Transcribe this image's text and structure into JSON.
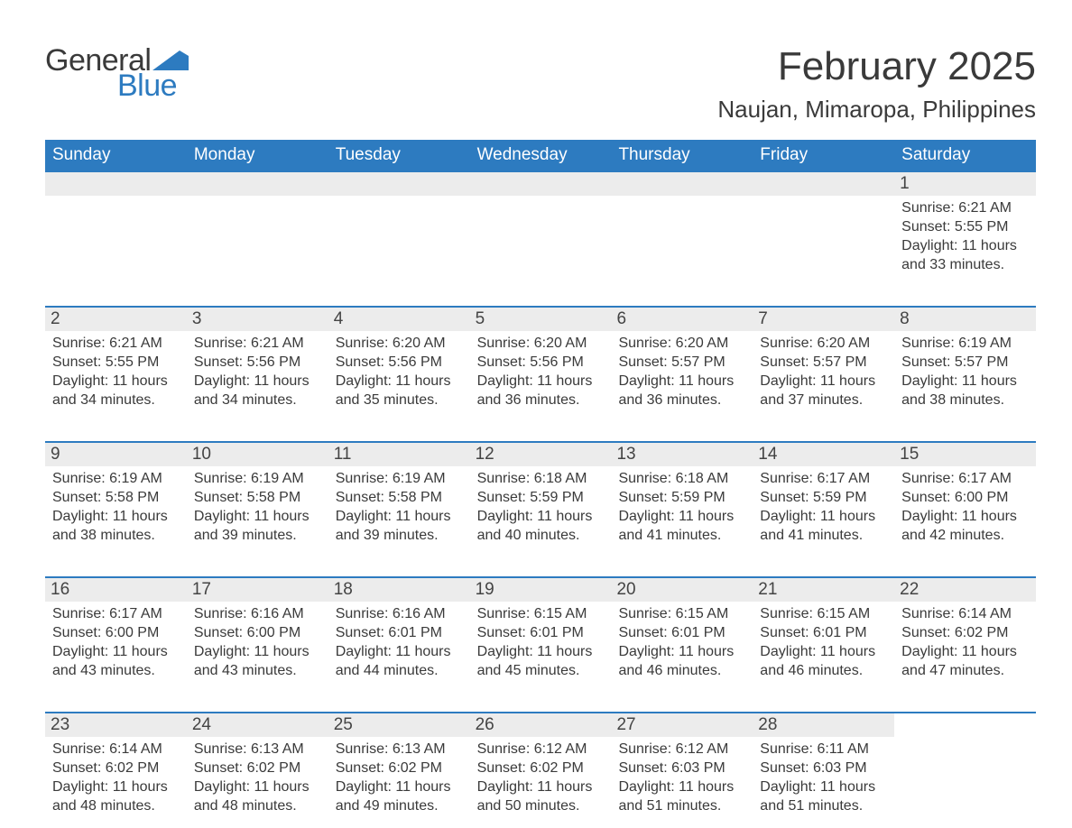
{
  "logo": {
    "general": "General",
    "blue": "Blue",
    "flag_color": "#2d7bc0"
  },
  "title": "February 2025",
  "location": "Naujan, Mimaropa, Philippines",
  "colors": {
    "header_bg": "#2d7bc0",
    "header_text": "#ffffff",
    "daynum_bg": "#ececec",
    "border": "#2d7bc0",
    "body_text": "#3a3a3a",
    "page_bg": "#ffffff"
  },
  "day_of_week_labels": [
    "Sunday",
    "Monday",
    "Tuesday",
    "Wednesday",
    "Thursday",
    "Friday",
    "Saturday"
  ],
  "weeks": [
    [
      {
        "blank": true
      },
      {
        "blank": true
      },
      {
        "blank": true
      },
      {
        "blank": true
      },
      {
        "blank": true
      },
      {
        "blank": true
      },
      {
        "day": "1",
        "sunrise": "Sunrise: 6:21 AM",
        "sunset": "Sunset: 5:55 PM",
        "daylight": "Daylight: 11 hours and 33 minutes."
      }
    ],
    [
      {
        "day": "2",
        "sunrise": "Sunrise: 6:21 AM",
        "sunset": "Sunset: 5:55 PM",
        "daylight": "Daylight: 11 hours and 34 minutes."
      },
      {
        "day": "3",
        "sunrise": "Sunrise: 6:21 AM",
        "sunset": "Sunset: 5:56 PM",
        "daylight": "Daylight: 11 hours and 34 minutes."
      },
      {
        "day": "4",
        "sunrise": "Sunrise: 6:20 AM",
        "sunset": "Sunset: 5:56 PM",
        "daylight": "Daylight: 11 hours and 35 minutes."
      },
      {
        "day": "5",
        "sunrise": "Sunrise: 6:20 AM",
        "sunset": "Sunset: 5:56 PM",
        "daylight": "Daylight: 11 hours and 36 minutes."
      },
      {
        "day": "6",
        "sunrise": "Sunrise: 6:20 AM",
        "sunset": "Sunset: 5:57 PM",
        "daylight": "Daylight: 11 hours and 36 minutes."
      },
      {
        "day": "7",
        "sunrise": "Sunrise: 6:20 AM",
        "sunset": "Sunset: 5:57 PM",
        "daylight": "Daylight: 11 hours and 37 minutes."
      },
      {
        "day": "8",
        "sunrise": "Sunrise: 6:19 AM",
        "sunset": "Sunset: 5:57 PM",
        "daylight": "Daylight: 11 hours and 38 minutes."
      }
    ],
    [
      {
        "day": "9",
        "sunrise": "Sunrise: 6:19 AM",
        "sunset": "Sunset: 5:58 PM",
        "daylight": "Daylight: 11 hours and 38 minutes."
      },
      {
        "day": "10",
        "sunrise": "Sunrise: 6:19 AM",
        "sunset": "Sunset: 5:58 PM",
        "daylight": "Daylight: 11 hours and 39 minutes."
      },
      {
        "day": "11",
        "sunrise": "Sunrise: 6:19 AM",
        "sunset": "Sunset: 5:58 PM",
        "daylight": "Daylight: 11 hours and 39 minutes."
      },
      {
        "day": "12",
        "sunrise": "Sunrise: 6:18 AM",
        "sunset": "Sunset: 5:59 PM",
        "daylight": "Daylight: 11 hours and 40 minutes."
      },
      {
        "day": "13",
        "sunrise": "Sunrise: 6:18 AM",
        "sunset": "Sunset: 5:59 PM",
        "daylight": "Daylight: 11 hours and 41 minutes."
      },
      {
        "day": "14",
        "sunrise": "Sunrise: 6:17 AM",
        "sunset": "Sunset: 5:59 PM",
        "daylight": "Daylight: 11 hours and 41 minutes."
      },
      {
        "day": "15",
        "sunrise": "Sunrise: 6:17 AM",
        "sunset": "Sunset: 6:00 PM",
        "daylight": "Daylight: 11 hours and 42 minutes."
      }
    ],
    [
      {
        "day": "16",
        "sunrise": "Sunrise: 6:17 AM",
        "sunset": "Sunset: 6:00 PM",
        "daylight": "Daylight: 11 hours and 43 minutes."
      },
      {
        "day": "17",
        "sunrise": "Sunrise: 6:16 AM",
        "sunset": "Sunset: 6:00 PM",
        "daylight": "Daylight: 11 hours and 43 minutes."
      },
      {
        "day": "18",
        "sunrise": "Sunrise: 6:16 AM",
        "sunset": "Sunset: 6:01 PM",
        "daylight": "Daylight: 11 hours and 44 minutes."
      },
      {
        "day": "19",
        "sunrise": "Sunrise: 6:15 AM",
        "sunset": "Sunset: 6:01 PM",
        "daylight": "Daylight: 11 hours and 45 minutes."
      },
      {
        "day": "20",
        "sunrise": "Sunrise: 6:15 AM",
        "sunset": "Sunset: 6:01 PM",
        "daylight": "Daylight: 11 hours and 46 minutes."
      },
      {
        "day": "21",
        "sunrise": "Sunrise: 6:15 AM",
        "sunset": "Sunset: 6:01 PM",
        "daylight": "Daylight: 11 hours and 46 minutes."
      },
      {
        "day": "22",
        "sunrise": "Sunrise: 6:14 AM",
        "sunset": "Sunset: 6:02 PM",
        "daylight": "Daylight: 11 hours and 47 minutes."
      }
    ],
    [
      {
        "day": "23",
        "sunrise": "Sunrise: 6:14 AM",
        "sunset": "Sunset: 6:02 PM",
        "daylight": "Daylight: 11 hours and 48 minutes."
      },
      {
        "day": "24",
        "sunrise": "Sunrise: 6:13 AM",
        "sunset": "Sunset: 6:02 PM",
        "daylight": "Daylight: 11 hours and 48 minutes."
      },
      {
        "day": "25",
        "sunrise": "Sunrise: 6:13 AM",
        "sunset": "Sunset: 6:02 PM",
        "daylight": "Daylight: 11 hours and 49 minutes."
      },
      {
        "day": "26",
        "sunrise": "Sunrise: 6:12 AM",
        "sunset": "Sunset: 6:02 PM",
        "daylight": "Daylight: 11 hours and 50 minutes."
      },
      {
        "day": "27",
        "sunrise": "Sunrise: 6:12 AM",
        "sunset": "Sunset: 6:03 PM",
        "daylight": "Daylight: 11 hours and 51 minutes."
      },
      {
        "day": "28",
        "sunrise": "Sunrise: 6:11 AM",
        "sunset": "Sunset: 6:03 PM",
        "daylight": "Daylight: 11 hours and 51 minutes."
      },
      {
        "blank": true,
        "no_bar": true
      }
    ]
  ]
}
